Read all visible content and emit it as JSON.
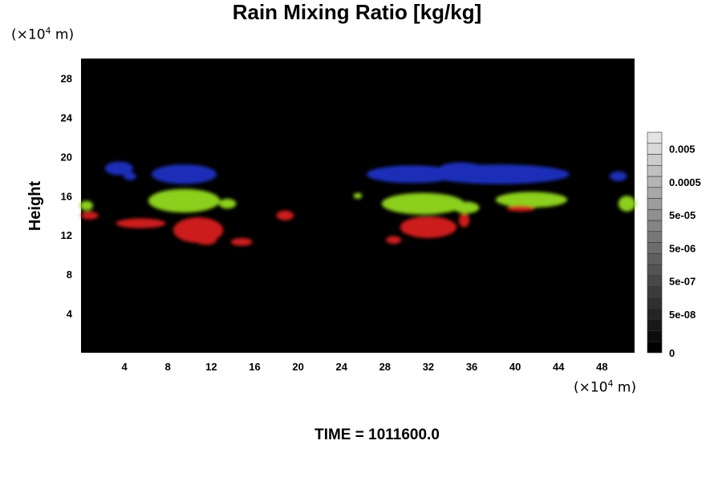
{
  "chart_data": {
    "type": "heatmap",
    "title": "Rain Mixing Ratio [kg/kg]",
    "ylabel": "Height",
    "x_unit": {
      "prefix": "(×10",
      "exp": "4",
      "suffix": " m)"
    },
    "y_unit": {
      "prefix": "(×10",
      "exp": "4",
      "suffix": " m)"
    },
    "xlim": [
      0,
      51
    ],
    "ylim": [
      0,
      30
    ],
    "x_ticks": [
      4,
      8,
      12,
      16,
      20,
      24,
      28,
      32,
      36,
      40,
      44,
      48
    ],
    "x_tick_labels": [
      "4",
      "8",
      "12",
      "16",
      "20",
      "24",
      "28",
      "32",
      "36",
      "40",
      "44",
      "48"
    ],
    "y_ticks": [
      4,
      8,
      12,
      16,
      20,
      24,
      28
    ],
    "y_tick_labels": [
      "4",
      "8",
      "12",
      "16",
      "20",
      "24",
      "28"
    ],
    "background_color": "#000000",
    "colorbar": {
      "levels": 20,
      "labels": [
        {
          "text": "0.005",
          "level": 18.5
        },
        {
          "text": "0.0005",
          "level": 15.5
        },
        {
          "text": "5e-05",
          "level": 12.5
        },
        {
          "text": "5e-06",
          "level": 9.5
        },
        {
          "text": "5e-07",
          "level": 6.5
        },
        {
          "text": "5e-08",
          "level": 3.5
        },
        {
          "text": "0",
          "level": 0
        }
      ]
    },
    "regions": [
      {
        "name": "blue",
        "color": "#1a2fb8",
        "blobs": [
          {
            "x": 3.5,
            "y": 18.8,
            "rx": 1.3,
            "ry": 0.7
          },
          {
            "x": 9.5,
            "y": 18.2,
            "rx": 3.0,
            "ry": 1.0
          },
          {
            "x": 4.5,
            "y": 18.0,
            "rx": 0.6,
            "ry": 0.4
          },
          {
            "x": 30.5,
            "y": 18.2,
            "rx": 4.2,
            "ry": 0.9
          },
          {
            "x": 38.5,
            "y": 18.2,
            "rx": 6.5,
            "ry": 1.0
          },
          {
            "x": 35.0,
            "y": 18.8,
            "rx": 2.0,
            "ry": 0.6
          },
          {
            "x": 49.5,
            "y": 18.0,
            "rx": 0.8,
            "ry": 0.5
          }
        ]
      },
      {
        "name": "green",
        "color": "#8ccf1a",
        "blobs": [
          {
            "x": 9.5,
            "y": 15.5,
            "rx": 3.3,
            "ry": 1.2
          },
          {
            "x": 13.5,
            "y": 15.2,
            "rx": 0.8,
            "ry": 0.5
          },
          {
            "x": 0.5,
            "y": 15.0,
            "rx": 0.6,
            "ry": 0.5
          },
          {
            "x": 31.5,
            "y": 15.2,
            "rx": 3.8,
            "ry": 1.1
          },
          {
            "x": 35.5,
            "y": 14.8,
            "rx": 1.2,
            "ry": 0.6
          },
          {
            "x": 41.5,
            "y": 15.6,
            "rx": 3.3,
            "ry": 0.8
          },
          {
            "x": 50.3,
            "y": 15.2,
            "rx": 0.8,
            "ry": 0.8
          },
          {
            "x": 25.5,
            "y": 16.0,
            "rx": 0.4,
            "ry": 0.3
          }
        ]
      },
      {
        "name": "red",
        "color": "#cc1a1a",
        "blobs": [
          {
            "x": 0.8,
            "y": 14.0,
            "rx": 0.8,
            "ry": 0.4
          },
          {
            "x": 5.5,
            "y": 13.2,
            "rx": 2.3,
            "ry": 0.5
          },
          {
            "x": 10.8,
            "y": 12.5,
            "rx": 2.3,
            "ry": 1.3
          },
          {
            "x": 11.5,
            "y": 11.5,
            "rx": 1.0,
            "ry": 0.5
          },
          {
            "x": 14.8,
            "y": 11.3,
            "rx": 1.0,
            "ry": 0.4
          },
          {
            "x": 18.8,
            "y": 14.0,
            "rx": 0.8,
            "ry": 0.5
          },
          {
            "x": 28.8,
            "y": 11.5,
            "rx": 0.7,
            "ry": 0.4
          },
          {
            "x": 32.0,
            "y": 12.8,
            "rx": 2.6,
            "ry": 1.1
          },
          {
            "x": 35.3,
            "y": 13.5,
            "rx": 0.5,
            "ry": 0.7
          },
          {
            "x": 40.5,
            "y": 14.7,
            "rx": 1.3,
            "ry": 0.3
          }
        ]
      }
    ]
  },
  "footer": {
    "time_label": "TIME = 1011600.0"
  }
}
